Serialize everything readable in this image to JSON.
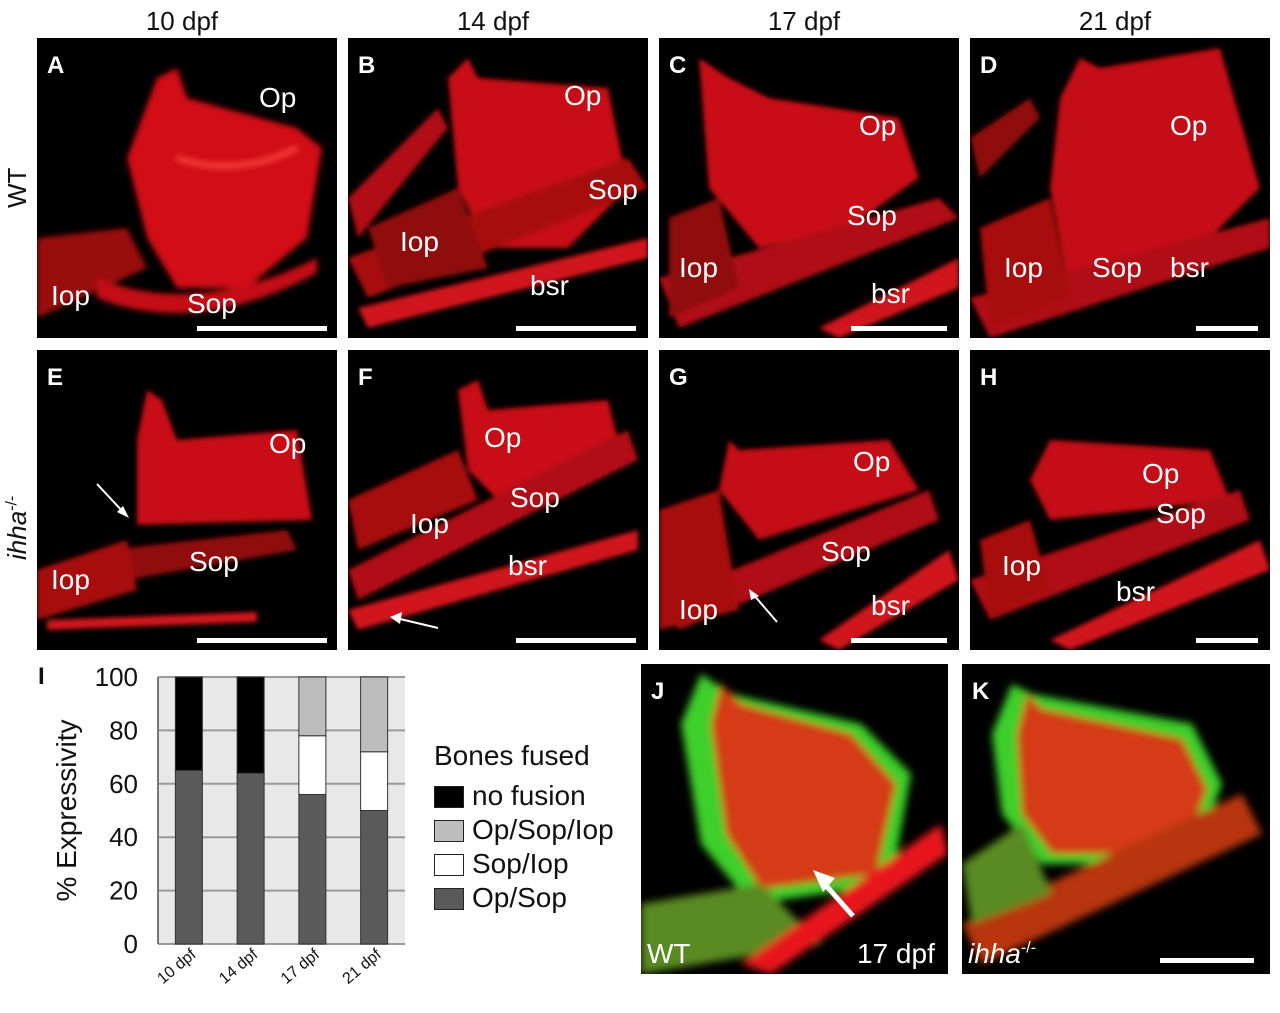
{
  "columns": [
    "10 dpf",
    "14 dpf",
    "17 dpf",
    "21 dpf"
  ],
  "rows": {
    "wt": "WT",
    "mutant": "ihha",
    "mutant_sup": "-/-"
  },
  "panels": {
    "A": {
      "letter": "A",
      "labels": [
        "Op",
        "Iop",
        "Sop"
      ]
    },
    "B": {
      "letter": "B",
      "labels": [
        "Op",
        "Sop",
        "Iop",
        "bsr"
      ]
    },
    "C": {
      "letter": "C",
      "labels": [
        "Op",
        "Sop",
        "Iop",
        "bsr"
      ]
    },
    "D": {
      "letter": "D",
      "labels": [
        "Op",
        "Iop",
        "Sop",
        "bsr"
      ]
    },
    "E": {
      "letter": "E",
      "labels": [
        "Op",
        "Sop",
        "Iop"
      ]
    },
    "F": {
      "letter": "F",
      "labels": [
        "Op",
        "Sop",
        "Iop",
        "bsr"
      ]
    },
    "G": {
      "letter": "G",
      "labels": [
        "Op",
        "Sop",
        "Iop",
        "bsr"
      ]
    },
    "H": {
      "letter": "H",
      "labels": [
        "Op",
        "Sop",
        "Iop",
        "bsr"
      ]
    },
    "J": {
      "letter": "J",
      "genotype": "WT",
      "stage": "17 dpf"
    },
    "K": {
      "letter": "K",
      "genotype": "ihha",
      "genotype_sup": "-/-"
    }
  },
  "colors": {
    "fluor_red": "#e8141c",
    "fluor_green": "#3ccf2a",
    "no_fusion": "#000000",
    "op_sop_iop": "#bdbdbd",
    "sop_iop": "#ffffff",
    "op_sop": "#5a5a5a"
  },
  "chart_data": {
    "panel_letter": "I",
    "type": "bar",
    "stacked": true,
    "ylabel": "% Expressivity",
    "ylim": [
      0,
      100
    ],
    "yticks": [
      0,
      20,
      40,
      60,
      80,
      100
    ],
    "categories": [
      "10 dpf",
      "14 dpf",
      "17 dpf",
      "21 dpf"
    ],
    "legend_title": "Bones fused",
    "legend": [
      "no fusion",
      "Op/Sop/Iop",
      "Sop/Iop",
      "Op/Sop"
    ],
    "series": [
      {
        "name": "Op/Sop",
        "values": [
          65,
          64,
          56,
          50
        ]
      },
      {
        "name": "Sop/Iop",
        "values": [
          0,
          0,
          22,
          22
        ]
      },
      {
        "name": "Op/Sop/Iop",
        "values": [
          0,
          0,
          22,
          28
        ]
      },
      {
        "name": "no fusion",
        "values": [
          35,
          36,
          0,
          0
        ]
      }
    ],
    "grid": true
  }
}
